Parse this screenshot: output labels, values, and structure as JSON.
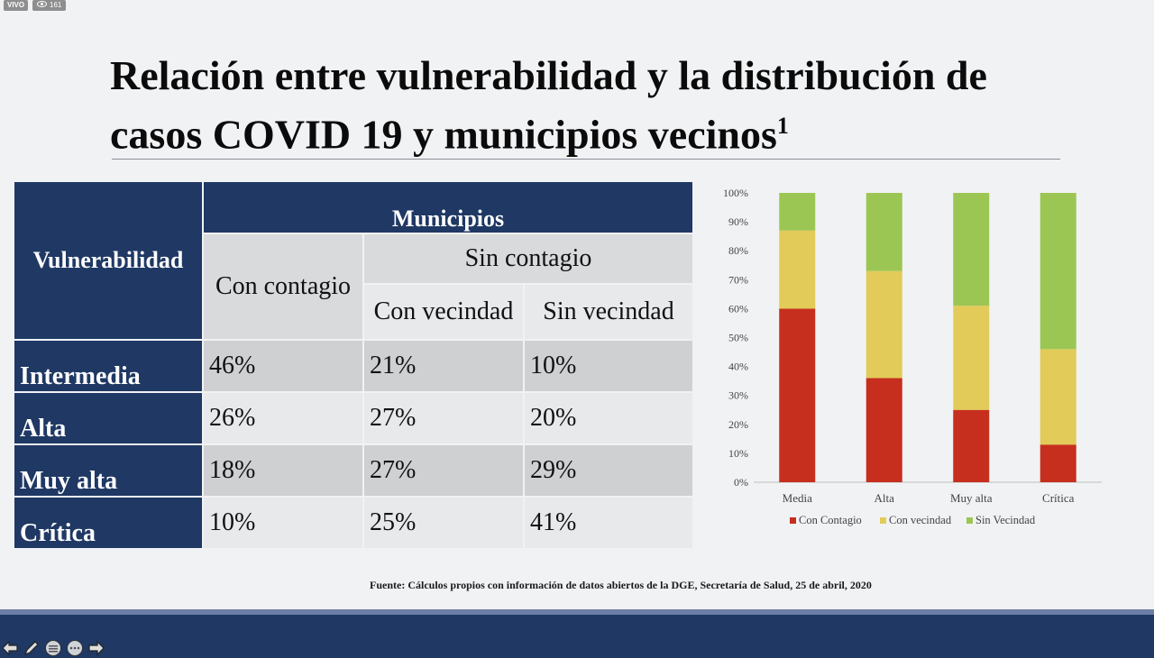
{
  "stream": {
    "live_label": "VIVO",
    "viewer_count": "161"
  },
  "slide": {
    "title": "Relación entre vulnerabilidad y la distribución de casos COVID 19 y municipios vecinos",
    "title_superscript": "1",
    "source": "Fuente: Cálculos propios con información de datos abiertos de la DGE, Secretaría de Salud, 25 de abril, 2020"
  },
  "table": {
    "row_header": "Vulnerabilidad",
    "group_header": "Municipios",
    "col_contagio": "Con contagio",
    "subgroup_header": "Sin contagio",
    "col_vecindad": "Con vecindad",
    "col_sin_vecindad": "Sin vecindad",
    "rows": [
      {
        "label": "Intermedia",
        "con_contagio": "46%",
        "con_vecindad": "21%",
        "sin_vecindad": "10%"
      },
      {
        "label": "Alta",
        "con_contagio": "26%",
        "con_vecindad": "27%",
        "sin_vecindad": "20%"
      },
      {
        "label": "Muy alta",
        "con_contagio": "18%",
        "con_vecindad": "27%",
        "sin_vecindad": "29%"
      },
      {
        "label": "Crítica",
        "con_contagio": "10%",
        "con_vecindad": "25%",
        "sin_vecindad": "41%"
      }
    ]
  },
  "chart_data": {
    "type": "bar",
    "stacked": true,
    "percent": true,
    "categories": [
      "Media",
      "Alta",
      "Muy alta",
      "Crítica"
    ],
    "series": [
      {
        "name": "Con Contagio",
        "color": "#c62f1d",
        "values": [
          60,
          36,
          25,
          13
        ]
      },
      {
        "name": "Con vecindad",
        "color": "#e2cb58",
        "values": [
          27,
          37,
          36,
          33
        ]
      },
      {
        "name": "Sin Vecindad",
        "color": "#9cc653",
        "values": [
          13,
          27,
          39,
          54
        ]
      }
    ],
    "yticks": [
      "0%",
      "10%",
      "20%",
      "30%",
      "40%",
      "50%",
      "60%",
      "70%",
      "80%",
      "90%",
      "100%"
    ],
    "ylim": [
      0,
      100
    ],
    "legend_position": "bottom"
  },
  "nav": {
    "icons": [
      "arrow-left-icon",
      "pen-icon",
      "menu-circle-icon",
      "more-circle-icon",
      "arrow-right-icon"
    ]
  }
}
